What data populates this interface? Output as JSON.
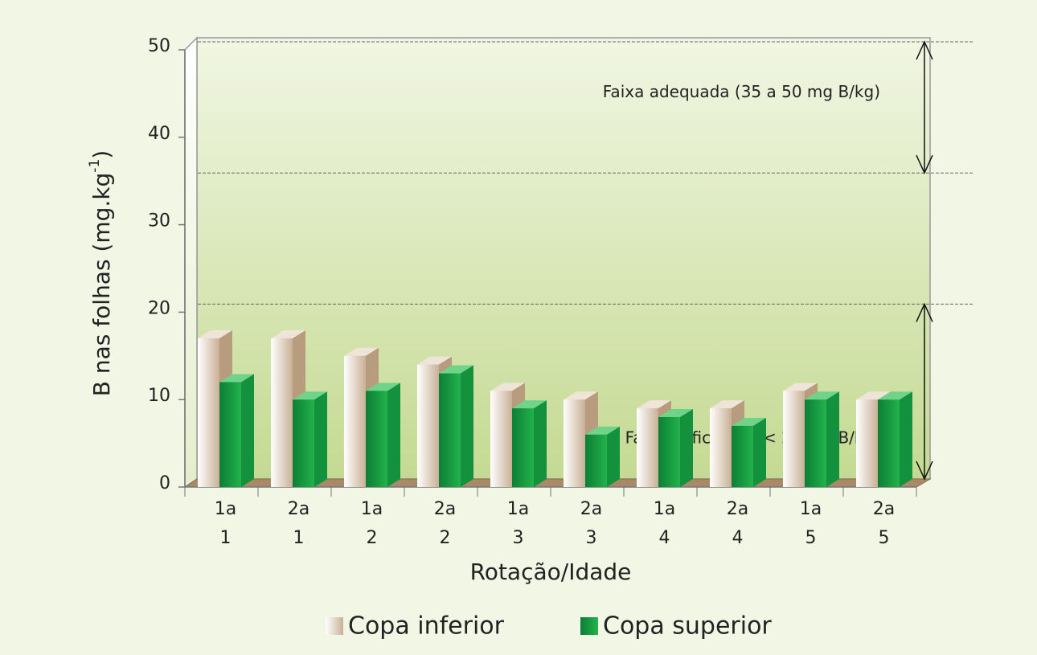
{
  "chart_data": {
    "type": "bar3d",
    "x_label": "Rotação/Idade",
    "y_label": {
      "text": "B nas folhas (mg.kg",
      "sup": "-1",
      "end": ")"
    },
    "categories": [
      [
        "1a",
        "1"
      ],
      [
        "2a",
        "1"
      ],
      [
        "1a",
        "2"
      ],
      [
        "2a",
        "2"
      ],
      [
        "1a",
        "3"
      ],
      [
        "2a",
        "3"
      ],
      [
        "1a",
        "4"
      ],
      [
        "2a",
        "4"
      ],
      [
        "1a",
        "5"
      ],
      [
        "2a",
        "5"
      ]
    ],
    "series": [
      {
        "name": "Copa inferior",
        "color": "#c9b096",
        "values": [
          17,
          17,
          15,
          14,
          11,
          10,
          9,
          9,
          11,
          10
        ]
      },
      {
        "name": "Copa superior",
        "color": "#22b24c",
        "values": [
          12,
          10,
          11,
          13,
          9,
          6,
          8,
          7,
          10,
          10
        ]
      }
    ],
    "ylim": [
      0,
      50
    ],
    "yticks": [
      0,
      10,
      20,
      30,
      40,
      50
    ],
    "bands": [
      {
        "label": "Faixa adequada (35 a 50 mg B/kg)",
        "range": [
          35,
          50
        ]
      },
      {
        "label": "Faixa deficiente (< 20 mg B/kg)",
        "range": [
          0,
          20
        ]
      }
    ]
  }
}
